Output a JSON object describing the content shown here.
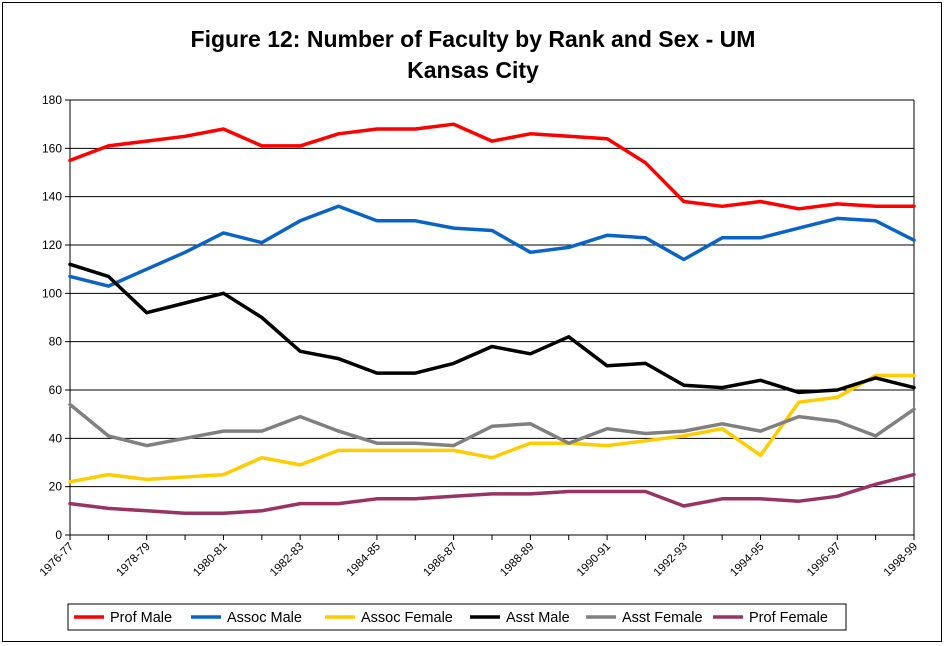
{
  "chart_data": {
    "type": "line",
    "title_line1": "Figure 12: Number of Faculty by Rank and Sex - UM",
    "title_line2": "Kansas City",
    "xlabel": "",
    "ylabel": "",
    "ylim": [
      0,
      180
    ],
    "yticks": [
      "0",
      "20",
      "40",
      "60",
      "80",
      "100",
      "120",
      "140",
      "160",
      "180"
    ],
    "x": [
      "1976-77",
      "1977-78",
      "1978-79",
      "1979-80",
      "1980-81",
      "1981-82",
      "1982-83",
      "1983-84",
      "1984-85",
      "1985-86",
      "1986-87",
      "1987-88",
      "1988-89",
      "1989-90",
      "1990-91",
      "1991-92",
      "1992-93",
      "1993-94",
      "1994-95",
      "1995-96",
      "1996-97",
      "1997-98",
      "1998-99"
    ],
    "xtick_labels": [
      "1976-77",
      "1978-79",
      "1980-81",
      "1982-83",
      "1984-85",
      "1986-87",
      "1988-89",
      "1990-91",
      "1992-93",
      "1994-95",
      "1996-97",
      "1998-99"
    ],
    "grid": "horizontal",
    "legend_position": "bottom",
    "series": [
      {
        "name": "Prof Male",
        "color": "#ff0000",
        "values": [
          155,
          161,
          163,
          165,
          168,
          161,
          161,
          166,
          168,
          168,
          170,
          163,
          166,
          165,
          164,
          154,
          138,
          136,
          138,
          135,
          137,
          136,
          136
        ]
      },
      {
        "name": "Assoc Male",
        "color": "#0a64c8",
        "values": [
          107,
          103,
          110,
          117,
          125,
          121,
          130,
          136,
          130,
          130,
          127,
          126,
          117,
          119,
          124,
          123,
          114,
          123,
          123,
          127,
          131,
          130,
          122
        ]
      },
      {
        "name": "Assoc Female",
        "color": "#ffcc00",
        "values": [
          22,
          25,
          23,
          24,
          25,
          32,
          29,
          35,
          35,
          35,
          35,
          32,
          38,
          38,
          37,
          39,
          41,
          44,
          33,
          55,
          57,
          66,
          66
        ]
      },
      {
        "name": "Asst Male",
        "color": "#000000",
        "values": [
          112,
          107,
          92,
          96,
          100,
          90,
          76,
          73,
          67,
          67,
          71,
          78,
          75,
          82,
          70,
          71,
          62,
          61,
          64,
          59,
          60,
          65,
          61
        ]
      },
      {
        "name": "Asst Female",
        "color": "#808080",
        "values": [
          54,
          41,
          37,
          40,
          43,
          43,
          49,
          43,
          38,
          38,
          37,
          45,
          46,
          38,
          44,
          42,
          43,
          46,
          43,
          49,
          47,
          41,
          52
        ]
      },
      {
        "name": "Prof Female",
        "color": "#993366",
        "values": [
          13,
          11,
          10,
          9,
          9,
          10,
          13,
          13,
          15,
          15,
          16,
          17,
          17,
          18,
          18,
          18,
          12,
          15,
          15,
          14,
          16,
          21,
          25
        ]
      }
    ]
  }
}
